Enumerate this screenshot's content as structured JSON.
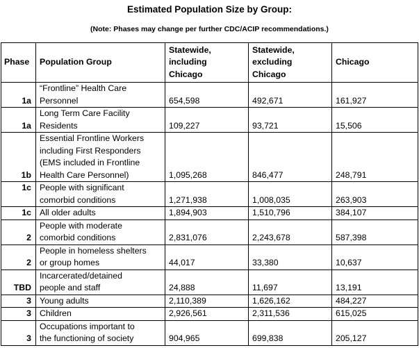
{
  "title": "Estimated Population Size by Group:",
  "note": "(Note: Phases may change per further CDC/ACIP recommendations.)",
  "headers": {
    "phase": "Phase",
    "group": "Population Group",
    "statewide_incl": [
      "Statewide,",
      "including",
      "Chicago"
    ],
    "statewide_excl": [
      "Statewide,",
      "excluding",
      "Chicago"
    ],
    "chicago": "Chicago"
  },
  "rows": [
    {
      "phase": "1a",
      "group": [
        "“Frontline” Health Care",
        "Personnel"
      ],
      "incl": "654,598",
      "excl": "492,671",
      "chi": "161,927"
    },
    {
      "phase": "1a",
      "group": [
        "Long Term Care Facility",
        "Residents"
      ],
      "incl": "109,227",
      "excl": "93,721",
      "chi": "15,506"
    },
    {
      "phase": "1b",
      "group": [
        "Essential Frontline Workers",
        "including First Responders",
        "(EMS included in Frontline",
        "Health Care Personnel)"
      ],
      "incl": "1,095,268",
      "excl": "846,477",
      "chi": "248,791"
    },
    {
      "phase": "1c",
      "group": [
        "People with significant",
        "comorbid conditions"
      ],
      "incl": "1,271,938",
      "excl": "1,008,035",
      "chi": "263,903"
    },
    {
      "phase": "1c",
      "group": [
        "All older adults"
      ],
      "incl": "1,894,903",
      "excl": "1,510,796",
      "chi": "384,107"
    },
    {
      "phase": "2",
      "group": [
        "People with moderate",
        "comorbid conditions"
      ],
      "incl": "2,831,076",
      "excl": "2,243,678",
      "chi": "587,398"
    },
    {
      "phase": "2",
      "group": [
        "People in homeless shelters",
        "or group homes"
      ],
      "incl": "44,017",
      "excl": "33,380",
      "chi": "10,637"
    },
    {
      "phase": "TBD",
      "group": [
        "Incarcerated/detained",
        "people and staff"
      ],
      "incl": "24,888",
      "excl": "11,697",
      "chi": "13,191"
    },
    {
      "phase": "3",
      "group": [
        "Young adults"
      ],
      "incl": "2,110,389",
      "excl": "1,626,162",
      "chi": "484,227"
    },
    {
      "phase": "3",
      "group": [
        "Children"
      ],
      "incl": "2,926,561",
      "excl": "2,311,536",
      "chi": "615,025"
    },
    {
      "phase": "3",
      "group": [
        "Occupations important to",
        "the functioning of society"
      ],
      "incl": "904,965",
      "excl": "699,838",
      "chi": "205,127"
    }
  ]
}
